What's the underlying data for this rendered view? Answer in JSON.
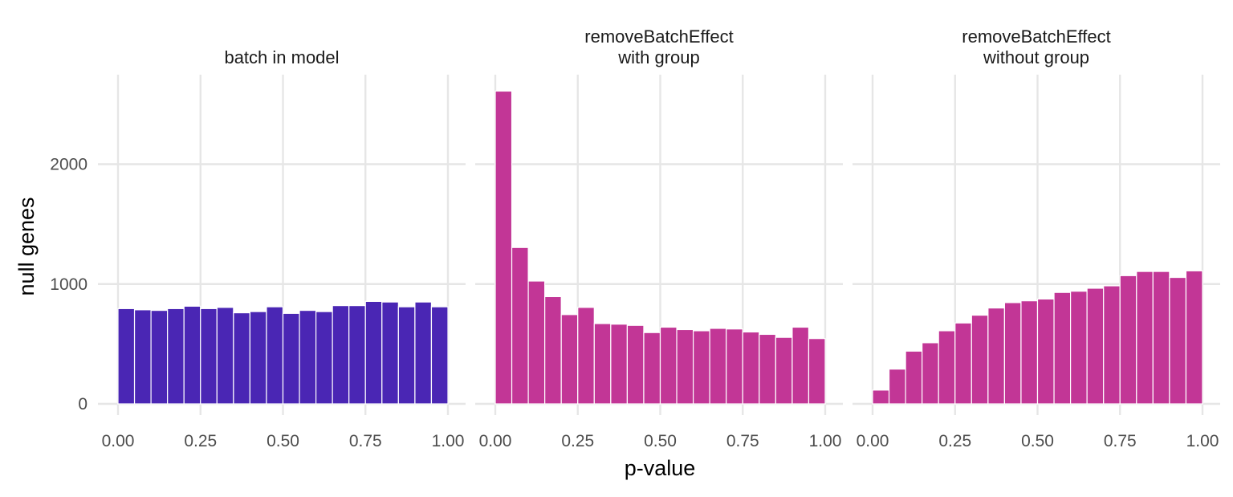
{
  "chart_data": {
    "type": "bar",
    "subtype": "faceted-histogram",
    "xlabel": "p-value",
    "ylabel": "null genes",
    "xlim": [
      0,
      1
    ],
    "ylim": [
      0,
      2600
    ],
    "x_ticks": [
      "0.00",
      "0.25",
      "0.50",
      "0.75",
      "1.00"
    ],
    "y_ticks": [
      "0",
      "1000",
      "2000"
    ],
    "x_tick_values": [
      0,
      0.25,
      0.5,
      0.75,
      1.0
    ],
    "y_tick_values": [
      0,
      1000,
      2000
    ],
    "bin_width": 0.05,
    "bin_centers": [
      0.0,
      0.05,
      0.1,
      0.15,
      0.2,
      0.25,
      0.3,
      0.35,
      0.4,
      0.45,
      0.5,
      0.55,
      0.6,
      0.65,
      0.7,
      0.75,
      0.8,
      0.85,
      0.9,
      0.95,
      1.0
    ],
    "grid": true,
    "legend": "none",
    "panels": [
      {
        "title_lines": [
          "batch in model"
        ],
        "color": "#4A26B4",
        "values": [
          795,
          785,
          780,
          795,
          815,
          795,
          805,
          760,
          770,
          810,
          755,
          780,
          770,
          820,
          820,
          855,
          850,
          810,
          850,
          810
        ]
      },
      {
        "title_lines": [
          "removeBatchEffect",
          "with group"
        ],
        "color": "#C23696",
        "values": [
          2610,
          1305,
          1025,
          895,
          745,
          805,
          670,
          665,
          655,
          595,
          640,
          620,
          610,
          630,
          625,
          600,
          580,
          555,
          640,
          545
        ]
      },
      {
        "title_lines": [
          "removeBatchEffect",
          "without group"
        ],
        "color": "#C23696",
        "values": [
          115,
          290,
          440,
          510,
          610,
          675,
          740,
          800,
          845,
          860,
          875,
          930,
          940,
          965,
          985,
          1070,
          1105,
          1105,
          1055,
          1110
        ]
      }
    ]
  }
}
